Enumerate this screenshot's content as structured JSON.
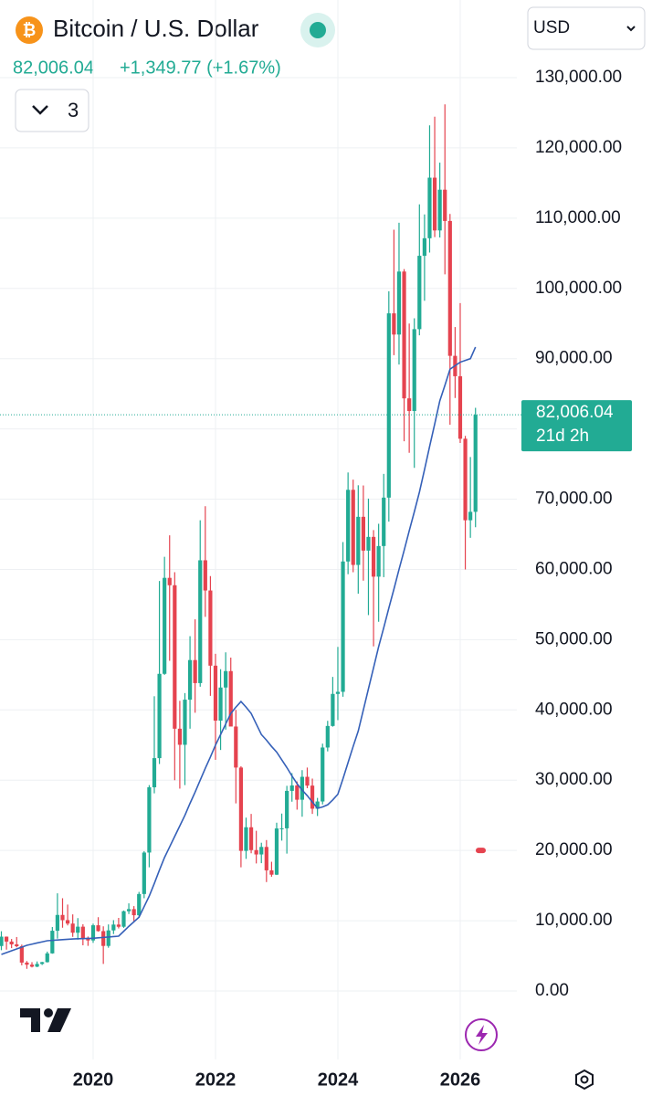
{
  "chart_data": {
    "type": "candlestick",
    "title": "Bitcoin / U.S. Dollar",
    "change": "+1,349.77 (+1.67%)",
    "currency": "USD",
    "indicator_count": "3",
    "countdown": "21d 2h",
    "last_price": {
      "value": 82006.04,
      "label": "82,006.04"
    },
    "alert_marker": 20000,
    "up_color": "#22ab94",
    "down_color": "#e5434f",
    "ma_color": "#3560b8",
    "ylim": [
      0,
      130000
    ],
    "yticks": [
      {
        "value": 0,
        "label": "0.00"
      },
      {
        "value": 10000,
        "label": "10,000.00"
      },
      {
        "value": 20000,
        "label": "20,000.00"
      },
      {
        "value": 30000,
        "label": "30,000.00"
      },
      {
        "value": 40000,
        "label": "40,000.00"
      },
      {
        "value": 50000,
        "label": "50,000.00"
      },
      {
        "value": 60000,
        "label": "60,000.00"
      },
      {
        "value": 70000,
        "label": "70,000.00"
      },
      {
        "value": 80000,
        "label": "80,000.00"
      },
      {
        "value": 90000,
        "label": "90,000.00"
      },
      {
        "value": 100000,
        "label": "100,000.00"
      },
      {
        "value": 110000,
        "label": "110,000.00"
      },
      {
        "value": 120000,
        "label": "120,000.00"
      },
      {
        "value": 130000,
        "label": "130,000.00"
      }
    ],
    "grid": true,
    "categories": [
      null,
      null,
      null,
      null,
      null,
      null,
      null,
      null,
      null,
      null,
      null,
      null,
      null,
      null,
      null,
      null,
      null,
      null,
      "2020",
      null,
      null,
      null,
      null,
      null,
      null,
      null,
      null,
      null,
      null,
      null,
      null,
      null,
      null,
      null,
      null,
      null,
      null,
      null,
      null,
      null,
      null,
      null,
      "2022",
      null,
      null,
      null,
      null,
      null,
      null,
      null,
      null,
      null,
      null,
      null,
      null,
      null,
      null,
      null,
      null,
      null,
      null,
      null,
      null,
      null,
      null,
      null,
      "2024",
      null,
      null,
      null,
      null,
      null,
      null,
      null,
      null,
      null,
      null,
      null,
      null,
      null,
      null,
      null,
      null,
      null,
      null,
      null,
      null,
      null,
      null,
      null,
      "2026",
      null,
      null,
      null
    ],
    "open": [
      6400,
      7730,
      7030,
      6630,
      6370,
      4040,
      3740,
      3460,
      3850,
      4100,
      5350,
      8570,
      10820,
      10080,
      9590,
      8290,
      9150,
      7540,
      7190,
      9350,
      8520,
      6410,
      8620,
      9450,
      9140,
      11350,
      11650,
      10780,
      13800,
      19700,
      28990,
      33140,
      45140,
      58800,
      57750,
      37330,
      35040,
      41460,
      47100,
      43820,
      61300,
      57000,
      46300,
      38480,
      43190,
      45530,
      37640,
      31800,
      19940,
      23300,
      20050,
      19430,
      20500,
      17170,
      16550,
      23130,
      23150,
      28480,
      29250,
      27220,
      30480,
      29230,
      25940,
      26970,
      34650,
      37720,
      42280,
      42580,
      61130,
      71330,
      60640,
      67490,
      62680,
      64630,
      58970,
      63330,
      70220,
      96450,
      93430,
      102400,
      84350,
      82550,
      94200,
      104640,
      107140,
      115760,
      108250,
      114050,
      109600,
      90400,
      87500,
      78600,
      67000,
      68200
    ],
    "high": [
      8500,
      7750,
      7400,
      7680,
      6600,
      4260,
      4100,
      4200,
      4150,
      5600,
      9100,
      13900,
      13200,
      12300,
      10900,
      10370,
      9500,
      7750,
      9580,
      10500,
      9200,
      9470,
      10080,
      10400,
      11450,
      12470,
      12080,
      14100,
      19900,
      29300,
      41950,
      58350,
      61800,
      64850,
      59600,
      41300,
      42400,
      50500,
      52900,
      67000,
      69000,
      59050,
      47990,
      45800,
      48200,
      47450,
      40000,
      31980,
      24670,
      25200,
      22800,
      21100,
      21480,
      18390,
      23950,
      25250,
      29200,
      31000,
      29820,
      31430,
      31800,
      30230,
      27480,
      35200,
      38450,
      44700,
      48970,
      63900,
      73800,
      72780,
      71980,
      71950,
      70080,
      65600,
      66500,
      73600,
      99600,
      108350,
      109350,
      102750,
      95000,
      95750,
      111970,
      110530,
      123200,
      124450,
      117900,
      126200,
      110600,
      94500,
      97900,
      79000,
      76000,
      83000
    ],
    "low": [
      5800,
      5880,
      6100,
      6210,
      3650,
      3150,
      3350,
      3390,
      3700,
      4050,
      5300,
      7450,
      9000,
      9330,
      7700,
      7300,
      6500,
      6420,
      6850,
      8450,
      3850,
      6150,
      8100,
      8900,
      8980,
      10950,
      9850,
      10400,
      13200,
      17600,
      28130,
      32300,
      45000,
      47000,
      30000,
      28800,
      29300,
      37330,
      39600,
      43300,
      53250,
      42000,
      32900,
      34300,
      37200,
      37700,
      26700,
      17600,
      18800,
      19600,
      18150,
      18190,
      15500,
      16260,
      16500,
      21400,
      19550,
      26940,
      25810,
      24800,
      28860,
      25200,
      24900,
      26550,
      34100,
      37620,
      38550,
      41880,
      59320,
      59600,
      56550,
      58400,
      53500,
      49050,
      52550,
      58900,
      66800,
      90500,
      89160,
      78250,
      76600,
      74450,
      93330,
      98240,
      105100,
      107300,
      107250,
      102000,
      80600,
      84400,
      78000,
      60000,
      64500,
      66000
    ],
    "close": [
      7730,
      7030,
      6630,
      6370,
      4040,
      3740,
      3460,
      3850,
      4100,
      5350,
      8570,
      10820,
      10080,
      9590,
      8290,
      9150,
      7540,
      7190,
      9350,
      8520,
      6410,
      8620,
      9450,
      9140,
      11350,
      11650,
      10780,
      13800,
      19700,
      28990,
      33140,
      45140,
      58800,
      57750,
      37330,
      35040,
      41460,
      47100,
      43820,
      61300,
      57000,
      46300,
      38480,
      43190,
      45530,
      37640,
      31800,
      19940,
      23300,
      20050,
      19430,
      20500,
      17170,
      16550,
      23130,
      23150,
      28480,
      29250,
      27220,
      30480,
      29230,
      25940,
      26970,
      34650,
      37720,
      42280,
      42580,
      61130,
      71330,
      60640,
      67490,
      62680,
      64630,
      58970,
      63330,
      70220,
      96450,
      93430,
      102400,
      84350,
      82550,
      94200,
      104640,
      107140,
      115760,
      108250,
      114050,
      109600,
      90400,
      87500,
      78600,
      67000,
      68200,
      82006.04
    ],
    "ma": [
      5200,
      5460,
      5720,
      5980,
      6240,
      6500,
      6660,
      6830,
      6990,
      7150,
      7200,
      7250,
      7300,
      7350,
      7400,
      7430,
      7450,
      7480,
      7500,
      7560,
      7620,
      7680,
      7740,
      7800,
      8500,
      9200,
      9850,
      10500,
      12000,
      13500,
      15300,
      17200,
      19000,
      20500,
      22000,
      23500,
      25000,
      26700,
      28300,
      30000,
      31700,
      33300,
      35000,
      36500,
      38000,
      39500,
      40400,
      41200,
      40400,
      39500,
      38000,
      36500,
      35700,
      34800,
      34000,
      32900,
      31800,
      30600,
      29500,
      28600,
      27800,
      26900,
      26000,
      26200,
      26500,
      27200,
      28000,
      30200,
      32500,
      34800,
      37000,
      40000,
      43000,
      46000,
      49000,
      51700,
      54500,
      57200,
      60000,
      62700,
      65500,
      68200,
      71000,
      74200,
      77500,
      80700,
      84000,
      86200,
      88500,
      89000,
      89500,
      89750,
      90000,
      91650
    ]
  }
}
